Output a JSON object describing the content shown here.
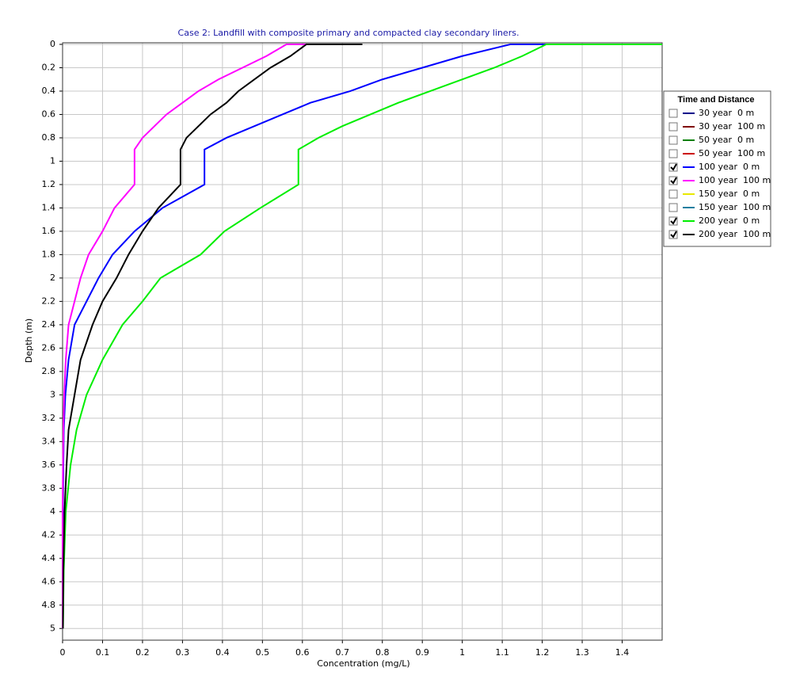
{
  "chart_data": {
    "type": "line",
    "title": "Case 2: Landfill with composite primary and compacted clay secondary liners.",
    "x_label": "Concentration (mg/L)",
    "y_label": "Depth (m)",
    "y_inverted": true,
    "xlim": [
      0,
      1.5
    ],
    "ylim": [
      0,
      5.1
    ],
    "xticks": [
      0,
      0.1,
      0.2,
      0.3,
      0.4,
      0.5,
      0.6,
      0.7,
      0.8,
      0.9,
      1,
      1.1,
      1.2,
      1.3,
      1.4
    ],
    "yticks": [
      0,
      0.2,
      0.4,
      0.6,
      0.8,
      1,
      1.2,
      1.4,
      1.6,
      1.8,
      2,
      2.2,
      2.4,
      2.6,
      2.8,
      3,
      3.2,
      3.4,
      3.6,
      3.8,
      4,
      4.2,
      4.4,
      4.6,
      4.8,
      5
    ],
    "grid": true,
    "legend_title": "Time and Distance",
    "legend_position": "right",
    "y": [
      0,
      0,
      0.1,
      0.2,
      0.3,
      0.4,
      0.5,
      0.6,
      0.7,
      0.8,
      0.9,
      1.2,
      1.4,
      1.6,
      1.8,
      2.0,
      2.2,
      2.4,
      2.7,
      3.0,
      3.3,
      3.6,
      4.0,
      4.5,
      5.0
    ],
    "series": [
      {
        "name": "30 year  0 m",
        "color": "#00008b",
        "checked": false
      },
      {
        "name": "30 year  100 m",
        "color": "#800000",
        "checked": false
      },
      {
        "name": "50 year  0 m",
        "color": "#008000",
        "checked": false
      },
      {
        "name": "50 year  100 m",
        "color": "#cc0000",
        "checked": false
      },
      {
        "name": "100 year  0 m",
        "color": "#0000ff",
        "checked": true,
        "values": [
          1.21,
          1.12,
          1.0,
          0.9,
          0.8,
          0.72,
          0.62,
          0.55,
          0.48,
          0.41,
          0.355,
          0.355,
          0.25,
          0.18,
          0.125,
          0.09,
          0.06,
          0.03,
          0.015,
          0.007,
          0.003,
          0.002,
          0.001,
          0,
          0
        ]
      },
      {
        "name": "100 year  100 m",
        "color": "#ff00ff",
        "checked": true,
        "values": [
          0.61,
          0.56,
          0.51,
          0.45,
          0.39,
          0.34,
          0.3,
          0.26,
          0.23,
          0.2,
          0.18,
          0.18,
          0.13,
          0.1,
          0.065,
          0.045,
          0.03,
          0.015,
          0.008,
          0.004,
          0.002,
          0.001,
          0,
          0,
          0
        ]
      },
      {
        "name": "150 year  0 m",
        "color": "#e8e800",
        "checked": false
      },
      {
        "name": "150 year  100 m",
        "color": "#1e7fa0",
        "checked": false
      },
      {
        "name": "200 year  0 m",
        "color": "#00ee00",
        "checked": true,
        "values": [
          1.5,
          1.21,
          1.15,
          1.08,
          1.0,
          0.92,
          0.84,
          0.77,
          0.7,
          0.64,
          0.59,
          0.59,
          0.495,
          0.405,
          0.345,
          0.245,
          0.2,
          0.15,
          0.1,
          0.06,
          0.035,
          0.02,
          0.008,
          0.003,
          0.001
        ]
      },
      {
        "name": "200 year  100 m",
        "color": "#000000",
        "checked": true,
        "values": [
          0.75,
          0.61,
          0.57,
          0.52,
          0.48,
          0.44,
          0.41,
          0.37,
          0.34,
          0.31,
          0.295,
          0.295,
          0.24,
          0.2,
          0.165,
          0.135,
          0.1,
          0.075,
          0.045,
          0.03,
          0.015,
          0.01,
          0.005,
          0.002,
          0.001
        ]
      }
    ]
  }
}
